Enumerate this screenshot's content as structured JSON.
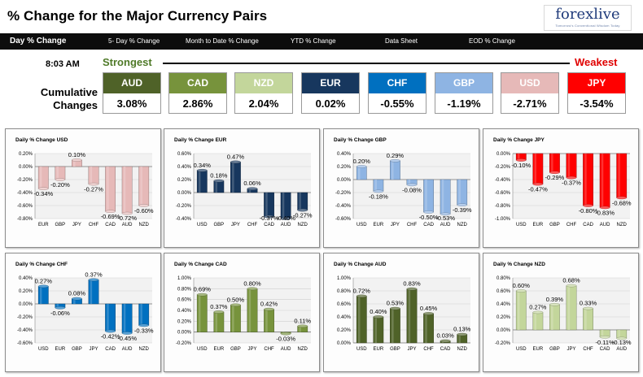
{
  "header": {
    "title": "% Change for the Major Currency Pairs",
    "logo_text": "forexlive",
    "logo_tagline": "Tomorrow's Conventional Wisdom Today"
  },
  "nav": {
    "items": [
      {
        "label": "Day % Change",
        "active": true
      },
      {
        "label": "5- Day % Change",
        "active": false
      },
      {
        "label": "Month to Date % Change",
        "active": false
      },
      {
        "label": "YTD % Change",
        "active": false
      },
      {
        "label": "Data Sheet",
        "active": false
      },
      {
        "label": "EOD % Change",
        "active": false
      }
    ]
  },
  "summary": {
    "time": "8:03 AM",
    "strongest_label": "Strongest",
    "weakest_label": "Weakest",
    "cumulative_label_line1": "Cumulative",
    "cumulative_label_line2": "Changes",
    "currencies": [
      {
        "name": "AUD",
        "value": "3.08%",
        "color": "#4f6228"
      },
      {
        "name": "CAD",
        "value": "2.86%",
        "color": "#77933c"
      },
      {
        "name": "NZD",
        "value": "2.04%",
        "color": "#c3d69b"
      },
      {
        "name": "EUR",
        "value": "0.02%",
        "color": "#17375e"
      },
      {
        "name": "CHF",
        "value": "-0.55%",
        "color": "#0070c0"
      },
      {
        "name": "GBP",
        "value": "-1.19%",
        "color": "#8eb4e3"
      },
      {
        "name": "USD",
        "value": "-2.71%",
        "color": "#e6b9b8"
      },
      {
        "name": "JPY",
        "value": "-3.54%",
        "color": "#ff0000"
      }
    ]
  },
  "chart_data": [
    {
      "type": "bar",
      "title": "Daily % Change USD",
      "color": "#e6b9b8",
      "categories": [
        "EUR",
        "GBP",
        "JPY",
        "CHF",
        "CAD",
        "AUD",
        "NZD"
      ],
      "values": [
        -0.34,
        -0.2,
        0.1,
        -0.27,
        -0.69,
        -0.72,
        -0.6
      ],
      "labels": [
        "-0.34%",
        "-0.20%",
        "0.10%",
        "-0.27%",
        "-0.69%",
        "-0.72%",
        "-0.60%"
      ],
      "ylim": [
        -0.8,
        0.2
      ],
      "yticks": [
        0.2,
        0.0,
        -0.2,
        -0.4,
        -0.6,
        -0.8
      ],
      "ytick_labels": [
        "0.20%",
        "0.00%",
        "-0.20%",
        "-0.40%",
        "-0.60%",
        "-0.80%"
      ]
    },
    {
      "type": "bar",
      "title": "Daily % Change EUR",
      "color": "#17375e",
      "categories": [
        "USD",
        "GBP",
        "JPY",
        "CHF",
        "CAD",
        "AUD",
        "NZD"
      ],
      "values": [
        0.34,
        0.18,
        0.47,
        0.06,
        -0.37,
        -0.4,
        -0.27
      ],
      "labels": [
        "0.34%",
        "0.18%",
        "0.47%",
        "0.06%",
        "-0.37%",
        "-0.40%",
        "-0.27%"
      ],
      "ylim": [
        -0.4,
        0.6
      ],
      "yticks": [
        0.6,
        0.4,
        0.2,
        0.0,
        -0.2,
        -0.4
      ],
      "ytick_labels": [
        "0.60%",
        "0.40%",
        "0.20%",
        "0.00%",
        "-0.20%",
        "-0.40%"
      ]
    },
    {
      "type": "bar",
      "title": "Daily % Change GBP",
      "color": "#8eb4e3",
      "categories": [
        "USD",
        "EUR",
        "JPY",
        "CHF",
        "CAD",
        "AUD",
        "NZD"
      ],
      "values": [
        0.2,
        -0.18,
        0.29,
        -0.08,
        -0.5,
        -0.53,
        -0.39
      ],
      "labels": [
        "0.20%",
        "-0.18%",
        "0.29%",
        "-0.08%",
        "-0.50%",
        "-0.53%",
        "-0.39%"
      ],
      "ylim": [
        -0.6,
        0.4
      ],
      "yticks": [
        0.4,
        0.2,
        0.0,
        -0.2,
        -0.4,
        -0.6
      ],
      "ytick_labels": [
        "0.40%",
        "0.20%",
        "0.00%",
        "-0.20%",
        "-0.40%",
        "-0.60%"
      ]
    },
    {
      "type": "bar",
      "title": "Daily % Change JPY",
      "color": "#ff0000",
      "categories": [
        "USD",
        "EUR",
        "GBP",
        "CHF",
        "CAD",
        "AUD",
        "NZD"
      ],
      "values": [
        -0.1,
        -0.47,
        -0.29,
        -0.37,
        -0.8,
        -0.83,
        -0.68
      ],
      "labels": [
        "-0.10%",
        "-0.47%",
        "-0.29%",
        "-0.37%",
        "-0.80%",
        "-0.83%",
        "-0.68%"
      ],
      "ylim": [
        -1.0,
        0.0
      ],
      "yticks": [
        0.0,
        -0.2,
        -0.4,
        -0.6,
        -0.8,
        -1.0
      ],
      "ytick_labels": [
        "0.00%",
        "-0.20%",
        "-0.40%",
        "-0.60%",
        "-0.80%",
        "-1.00%"
      ]
    },
    {
      "type": "bar",
      "title": "Daily % Change CHF",
      "color": "#0070c0",
      "categories": [
        "USD",
        "EUR",
        "GBP",
        "JPY",
        "CAD",
        "AUD",
        "NZD"
      ],
      "values": [
        0.27,
        -0.06,
        0.08,
        0.37,
        -0.42,
        -0.45,
        -0.33
      ],
      "labels": [
        "0.27%",
        "-0.06%",
        "0.08%",
        "0.37%",
        "-0.42%",
        "-0.45%",
        "-0.33%"
      ],
      "ylim": [
        -0.6,
        0.4
      ],
      "yticks": [
        0.4,
        0.2,
        0.0,
        -0.2,
        -0.4,
        -0.6
      ],
      "ytick_labels": [
        "0.40%",
        "0.20%",
        "0.00%",
        "-0.20%",
        "-0.40%",
        "-0.60%"
      ]
    },
    {
      "type": "bar",
      "title": "Daily % Change CAD",
      "color": "#77933c",
      "categories": [
        "USD",
        "EUR",
        "GBP",
        "JPY",
        "CHF",
        "AUD",
        "NZD"
      ],
      "values": [
        0.69,
        0.37,
        0.5,
        0.8,
        0.42,
        -0.03,
        0.11
      ],
      "labels": [
        "0.69%",
        "0.37%",
        "0.50%",
        "0.80%",
        "0.42%",
        "-0.03%",
        "0.11%"
      ],
      "ylim": [
        -0.2,
        1.0
      ],
      "yticks": [
        1.0,
        0.8,
        0.6,
        0.4,
        0.2,
        0.0,
        -0.2
      ],
      "ytick_labels": [
        "1.00%",
        "0.80%",
        "0.60%",
        "0.40%",
        "0.20%",
        "0.00%",
        "-0.20%"
      ]
    },
    {
      "type": "bar",
      "title": "Daily % Change AUD",
      "color": "#4f6228",
      "categories": [
        "USD",
        "EUR",
        "GBP",
        "JPY",
        "CHF",
        "CAD",
        "NZD"
      ],
      "values": [
        0.72,
        0.4,
        0.53,
        0.83,
        0.45,
        0.03,
        0.13
      ],
      "labels": [
        "0.72%",
        "0.40%",
        "0.53%",
        "0.83%",
        "0.45%",
        "0.03%",
        "0.13%"
      ],
      "ylim": [
        0.0,
        1.0
      ],
      "yticks": [
        1.0,
        0.8,
        0.6,
        0.4,
        0.2,
        0.0
      ],
      "ytick_labels": [
        "1.00%",
        "0.80%",
        "0.60%",
        "0.40%",
        "0.20%",
        "0.00%"
      ]
    },
    {
      "type": "bar",
      "title": "Daily % Change NZD",
      "color": "#c3d69b",
      "categories": [
        "USD",
        "EUR",
        "GBP",
        "JPY",
        "CHF",
        "CAD",
        "AUD"
      ],
      "values": [
        0.6,
        0.27,
        0.39,
        0.68,
        0.33,
        -0.11,
        -0.13
      ],
      "labels": [
        "0.60%",
        "0.27%",
        "0.39%",
        "0.68%",
        "0.33%",
        "-0.11%",
        "-0.13%"
      ],
      "ylim": [
        -0.2,
        0.8
      ],
      "yticks": [
        0.8,
        0.6,
        0.4,
        0.2,
        0.0,
        -0.2
      ],
      "ytick_labels": [
        "0.80%",
        "0.60%",
        "0.40%",
        "0.20%",
        "0.00%",
        "-0.20%"
      ]
    }
  ]
}
